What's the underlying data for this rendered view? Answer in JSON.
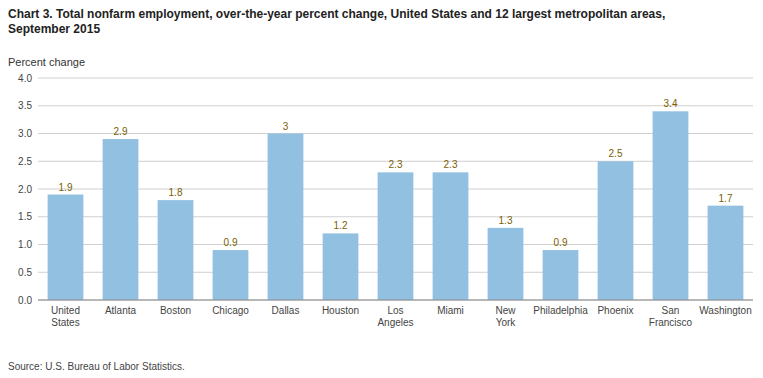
{
  "chart_data": {
    "type": "bar",
    "title": "Chart 3. Total nonfarm employment, over-the-year percent change, United States and 12 largest metropolitan areas,\nSeptember 2015",
    "ylabel": "Percent change",
    "source": "Source: U.S. Bureau of Labor Statistics.",
    "categories": [
      "United\nStates",
      "Atlanta",
      "Boston",
      "Chicago",
      "Dallas",
      "Houston",
      "Los\nAngeles",
      "Miami",
      "New\nYork",
      "Philadelphia",
      "Phoenix",
      "San\nFrancisco",
      "Washington"
    ],
    "values": [
      1.9,
      2.9,
      1.8,
      0.9,
      3.0,
      1.2,
      2.3,
      2.3,
      1.3,
      0.9,
      2.5,
      3.4,
      1.7
    ],
    "color": "#92c0e0",
    "ylim": [
      0.0,
      4.0
    ],
    "yticks": [
      {
        "value": 0.0,
        "label": "0.0"
      },
      0.5,
      {
        "value": 1.0,
        "label": "1.0"
      },
      1.5,
      {
        "value": 2.0,
        "label": "2.0"
      },
      2.5,
      {
        "value": 3.0,
        "label": "3.0"
      },
      3.5,
      {
        "value": 4.0,
        "label": "4.0"
      }
    ],
    "grid": true,
    "data_labels": true
  }
}
